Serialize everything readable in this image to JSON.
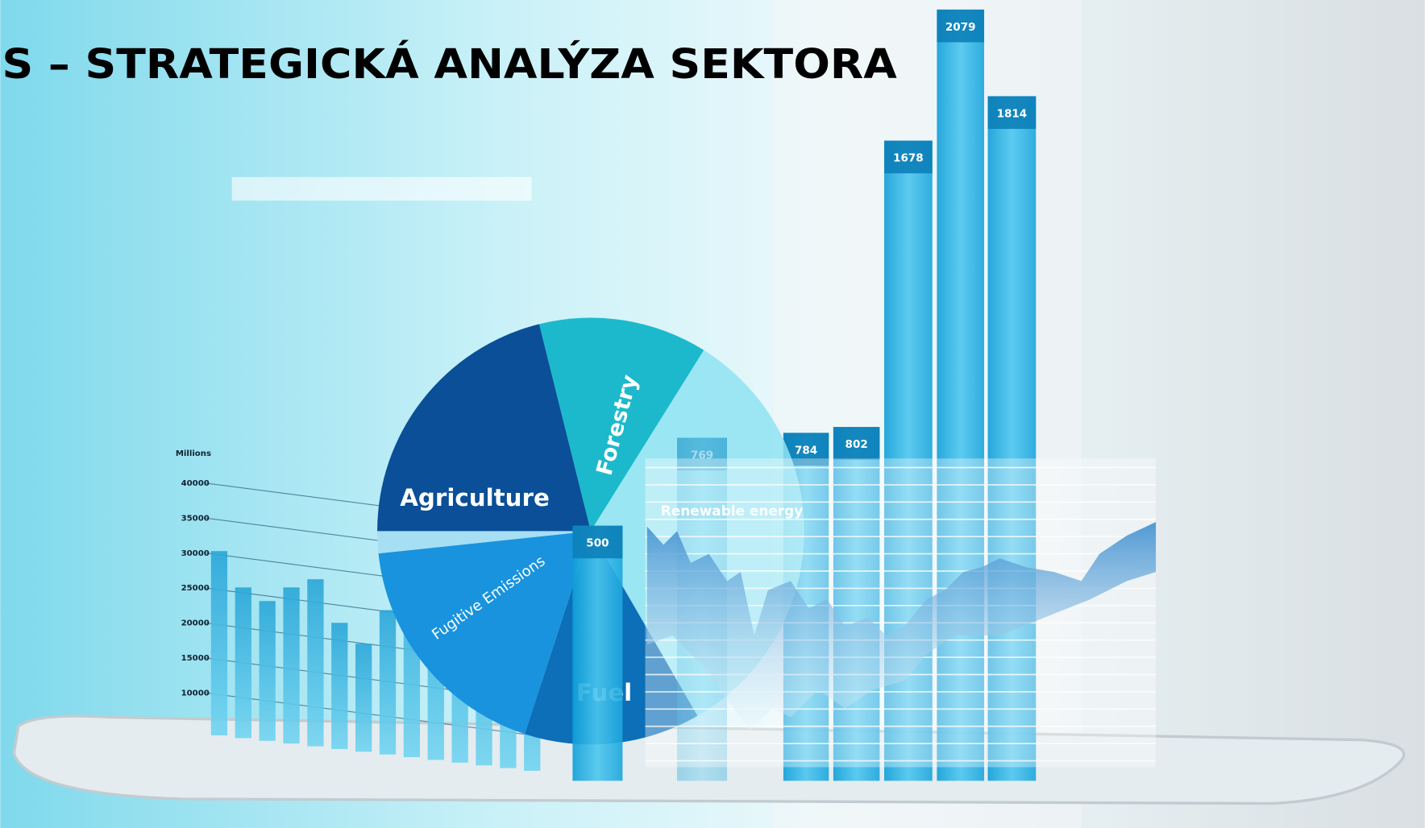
{
  "title": "S – STRATEGICKÁ ANALÝZA SEKTORA",
  "pie": {
    "labels": [
      "Agriculture",
      "Forestry",
      "Fugitive Emissions",
      "Fuel",
      "Renewable energy"
    ]
  },
  "bars": {
    "values": [
      500,
      769,
      784,
      802,
      1678,
      2079,
      1814
    ]
  },
  "axis": {
    "unit": "Millions",
    "ticks": [
      40000,
      35000,
      30000,
      25000,
      20000,
      15000,
      10000
    ]
  }
}
